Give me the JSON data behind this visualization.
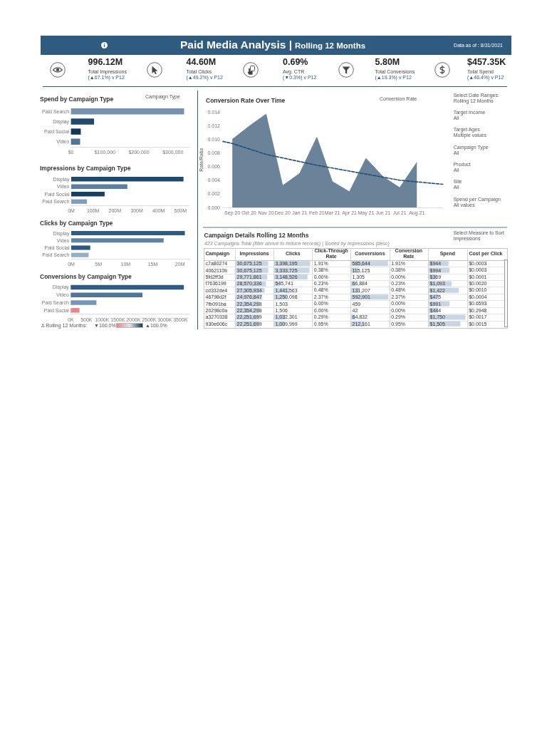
{
  "chart_data": [
    {
      "type": "other",
      "title": "Paid Media Analysis |",
      "subtitle": "Rolling 12 Months",
      "annotations": [
        "Data as of : 8/31/2021"
      ]
    },
    {
      "type": "other",
      "annotations": [
        "996.12M",
        "Total Impressions",
        "(▲67.1%) v P12",
        "44.60M",
        "Total Clicks",
        "(▲49.2%) v P12",
        "0.69%",
        "Avg. CTR",
        "(▼0.3%) v P12",
        "5.80M",
        "Total Conversions",
        "(▲19.3%) v P12",
        "$457.35K",
        "Total Spend",
        "(▲46.4%) v P12"
      ]
    },
    {
      "type": "bar",
      "orientation": "horizontal",
      "title": "Spend by Campaign Type",
      "annotations": [
        "Campaign Type"
      ],
      "categories": [
        "Paid Search",
        "Display",
        "Paid Social",
        "Video"
      ],
      "values": [
        333000,
        68000,
        29000,
        27000
      ],
      "colors": [
        "#7393b1",
        "#1f4a6e",
        "#113659",
        "#4f7598"
      ],
      "xlim": [
        0,
        350000
      ],
      "xticks": [
        {
          "value": 0,
          "label": "$0"
        },
        {
          "value": 100000,
          "label": "$100,000"
        },
        {
          "value": 200000,
          "label": "$200,000"
        },
        {
          "value": 300000,
          "label": "$300,000"
        }
      ]
    },
    {
      "type": "area",
      "title": "Conversion Rate Over Time",
      "ylabel": "Rate/Ratio",
      "annotations": [
        "Conversion Rate"
      ],
      "x": [
        "2020-09",
        "2020-10",
        "2020-11",
        "2020-12",
        "2021-01",
        "2021-02",
        "2021-03",
        "2021-04",
        "2021-05",
        "2021-06",
        "2021-07",
        "2021-08"
      ],
      "xlim": [
        "2020-08-15",
        "2021-09-17"
      ],
      "xticks": [
        {
          "value": "2020-09",
          "label": "Sep 20"
        },
        {
          "value": "2020-10",
          "label": "Oct 20"
        },
        {
          "value": "2020-11",
          "label": "Nov 20"
        },
        {
          "value": "2020-12",
          "label": "Dec 20"
        },
        {
          "value": "2021-01",
          "label": "Jan 21"
        },
        {
          "value": "2021-02",
          "label": "Feb 21"
        },
        {
          "value": "2021-03",
          "label": "Mar 21"
        },
        {
          "value": "2021-04",
          "label": "Apr 21"
        },
        {
          "value": "2021-05",
          "label": "May 21"
        },
        {
          "value": "2021-06",
          "label": "Jun 21"
        },
        {
          "value": "2021-07",
          "label": "Jul 21"
        },
        {
          "value": "2021-08",
          "label": "Aug 21"
        }
      ],
      "ylim": [
        0,
        0.014
      ],
      "yticks": [
        {
          "value": 0,
          "label": "0.000"
        },
        0.002,
        0.004,
        0.006,
        0.008,
        {
          "value": 0.01,
          "label": "0.010"
        },
        0.012,
        0.014
      ],
      "series": [
        {
          "type": "area",
          "color": "#6b8399",
          "values": [
            0.01,
            0.0119,
            0.0137,
            0.0032,
            0.005,
            0.0103,
            0.0038,
            0.0023,
            0.0072,
            0.0045,
            0.0029,
            0.0066
          ]
        },
        {
          "type": "line",
          "color": "#1f4e79",
          "line_style": "dashed",
          "x": [
            "2020-08-15",
            "2020-09",
            "2020-11",
            "2021-02",
            "2021-05",
            "2021-07",
            "2021-09-17"
          ],
          "values": [
            0.0097,
            0.0094,
            0.0078,
            0.0062,
            0.0049,
            0.004,
            0.0034
          ]
        }
      ]
    },
    {
      "type": "other",
      "annotations": [
        "Select Date Ranges:",
        "Rolling 12 Months",
        "Target Income",
        "All",
        "Target Ages",
        "Multiple values",
        "Campaign Type",
        "All",
        "Product",
        "All",
        "Site",
        "All",
        "Spend per Campaign",
        "All values"
      ]
    },
    {
      "type": "bar",
      "orientation": "horizontal",
      "title": "Impressions by Campaign Type",
      "categories": [
        "Display",
        "Video",
        "Paid Social",
        "Paid Search"
      ],
      "values": [
        514000000,
        257000000,
        153000000,
        72000000
      ],
      "colors": [
        "#1d4870",
        "#5a7fa2",
        "#163f66",
        "#7f9dbb"
      ],
      "xlim": [
        0,
        540000000
      ],
      "xticks": [
        {
          "value": 0,
          "label": "0M"
        },
        {
          "value": 100000000,
          "label": "100M"
        },
        {
          "value": 200000000,
          "label": "200M"
        },
        {
          "value": 300000000,
          "label": "300M"
        },
        {
          "value": 400000000,
          "label": "400M"
        },
        {
          "value": 500000000,
          "label": "500M"
        }
      ]
    },
    {
      "type": "bar",
      "orientation": "horizontal",
      "title": "Clicks by Campaign Type",
      "categories": [
        "Display",
        "Video",
        "Paid Social",
        "Paid Search"
      ],
      "values": [
        20900000,
        17000000,
        3500000,
        3200000
      ],
      "colors": [
        "#305c84",
        "#5e83a6",
        "#2b5880",
        "#95aec7"
      ],
      "xlim": [
        0,
        21800000
      ],
      "xticks": [
        {
          "value": 0,
          "label": "0M"
        },
        {
          "value": 5000000,
          "label": "5M"
        },
        {
          "value": 10000000,
          "label": "10M"
        },
        {
          "value": 15000000,
          "label": "15M"
        },
        {
          "value": 20000000,
          "label": "20M"
        }
      ]
    },
    {
      "type": "other",
      "title": "Campaign Details Rolling 12 Months",
      "subtitle": "423 Campaigns Total (filter above to reduce records) | Sorted by Impressions (desc)",
      "annotations": [
        "Select Measure to Sort",
        "Impressions"
      ],
      "categories": [
        "Campaign",
        "Impressions",
        "Clicks",
        "Click-Through Rate",
        "Conversions",
        "Conversion Rate",
        "Spend",
        "Cost per Click"
      ],
      "cell_labels": [
        [
          null,
          null,
          null,
          "1.91%",
          null,
          "1.91%",
          null,
          "$0.0003"
        ],
        [
          null,
          null,
          null,
          "0.38%",
          null,
          "0.38%",
          null,
          "$0.0003"
        ],
        [
          null,
          null,
          null,
          "0.00%",
          null,
          "0.00%",
          null,
          "$0.0001"
        ],
        [
          null,
          null,
          null,
          "0.23%",
          null,
          "0.23%",
          null,
          "$0.0020"
        ],
        [
          null,
          null,
          null,
          "0.48%",
          null,
          "0.48%",
          null,
          "$0.0010"
        ],
        [
          null,
          null,
          null,
          "2.37%",
          null,
          "2.37%",
          null,
          "$0.0004"
        ],
        [
          null,
          null,
          null,
          "0.00%",
          null,
          "0.00%",
          null,
          "$0.6593"
        ],
        [
          null,
          null,
          null,
          "0.00%",
          null,
          "0.00%",
          null,
          "$0.2948"
        ],
        [
          null,
          null,
          null,
          "0.29%",
          null,
          "0.29%",
          null,
          "$0.0017"
        ],
        [
          null,
          null,
          null,
          "0.95%",
          null,
          "0.95%",
          null,
          "$0.0015"
        ]
      ]
    },
    {
      "type": "bar",
      "orientation": "horizontal",
      "tick_labels": "y",
      "categories": [
        "c7a80274",
        "4062110b",
        "5fd2ff3d",
        "f7636199",
        "cd332de4",
        "46798d2f",
        "7fb091ba",
        "20298c0a",
        "a3270338",
        "930e606c"
      ],
      "values": [
        30675125,
        30675125,
        29771861,
        28570336,
        27305934,
        24976847,
        22354298,
        22354298,
        22251699,
        22251699
      ],
      "value_labels": [
        "30,675,125",
        "30,675,125",
        "29,771,861",
        "28,570,336",
        "27,305,934",
        "24,976,847",
        "22,354,298",
        "22,354,298",
        "22,251,699",
        "22,251,699"
      ],
      "color": "#c8d5e3"
    },
    {
      "type": "bar",
      "orientation": "horizontal",
      "categories": [
        null,
        null,
        null,
        null,
        null,
        null,
        null,
        null,
        null,
        null
      ],
      "values": [
        3398195,
        3333725,
        3148526,
        545741,
        1441563,
        1250098,
        1503,
        1506,
        1032301,
        1009999
      ],
      "value_labels": [
        "3,398,195",
        "3,333,725",
        "3,148,526",
        "545,741",
        "1,441,563",
        "1,250,098",
        "1,503",
        "1,506",
        "1,032,301",
        "1,009,999"
      ],
      "color": "#c8d5e3"
    },
    {
      "type": "bar",
      "orientation": "horizontal",
      "categories": [
        null,
        null,
        null,
        null,
        null,
        null,
        null,
        null,
        null,
        null
      ],
      "values": [
        585644,
        115125,
        1305,
        66884,
        131207,
        592901,
        459,
        42,
        64832,
        212161
      ],
      "value_labels": [
        "585,644",
        "115,125",
        "1,305",
        "66,884",
        "131,207",
        "592,901",
        "459",
        "42",
        "64,832",
        "212,161"
      ],
      "color": "#c8d5e3"
    },
    {
      "type": "bar",
      "orientation": "horizontal",
      "categories": [
        null,
        null,
        null,
        null,
        null,
        null,
        null,
        null,
        null,
        null
      ],
      "values": [
        944,
        994,
        369,
        1093,
        1422,
        475,
        991,
        444,
        1750,
        1505
      ],
      "value_labels": [
        "$944",
        "$994",
        "$369",
        "$1,093",
        "$1,422",
        "$475",
        "$991",
        "$444",
        "$1,750",
        "$1,505"
      ],
      "color": "#c8d5e3"
    },
    {
      "type": "bar",
      "orientation": "horizontal",
      "title": "Conversions by Campaign Type",
      "annotations": [
        "Δ Rolling 12 Months:",
        "▼100.0%",
        "▲100.0%"
      ],
      "categories": [
        "Display",
        "Video",
        "Paid Search",
        "Paid Social"
      ],
      "values": [
        3610000,
        2290000,
        820000,
        280000
      ],
      "colors": [
        "#2f5b83",
        "#4f7699",
        "#7596b6",
        "#e8858b"
      ],
      "xlim": [
        0,
        3800000
      ],
      "xticks": [
        {
          "value": 0,
          "label": "0K"
        },
        {
          "value": 500000,
          "label": "500K"
        },
        {
          "value": 1000000,
          "label": "1000K"
        },
        {
          "value": 1500000,
          "label": "1500K"
        },
        {
          "value": 2000000,
          "label": "2000K"
        },
        {
          "value": 2500000,
          "label": "2500K"
        },
        {
          "value": 3000000,
          "label": "3000K"
        },
        {
          "value": 3500000,
          "label": "3500K"
        }
      ]
    }
  ]
}
